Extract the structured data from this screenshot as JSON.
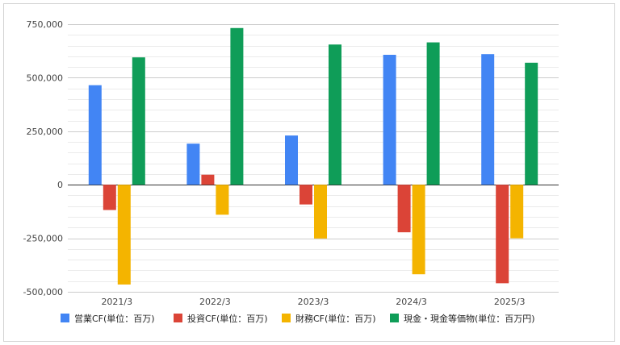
{
  "chart_data": {
    "type": "bar",
    "categories": [
      "2021/3",
      "2022/3",
      "2023/3",
      "2024/3",
      "2025/3"
    ],
    "series": [
      {
        "name": "営業CF(単位：百万)",
        "color": "#4285f4",
        "values": [
          465000,
          192000,
          230000,
          607000,
          610000
        ]
      },
      {
        "name": "投資CF(単位：百万)",
        "color": "#db4437",
        "values": [
          -118000,
          47000,
          -92000,
          -222000,
          -460000
        ]
      },
      {
        "name": "財務CF(単位：百万)",
        "color": "#f4b400",
        "values": [
          -466000,
          -140000,
          -251000,
          -418000,
          -250000
        ]
      },
      {
        "name": "現金・現金等価物(単位：百万円)",
        "color": "#0f9d58",
        "values": [
          595000,
          732000,
          655000,
          665000,
          570000
        ]
      }
    ],
    "yticks": [
      "750,000",
      "500,000",
      "250,000",
      "0",
      "-250,000",
      "-500,000"
    ],
    "ylim": [
      -500000,
      750000
    ],
    "grid": true,
    "legend_position": "bottom"
  }
}
